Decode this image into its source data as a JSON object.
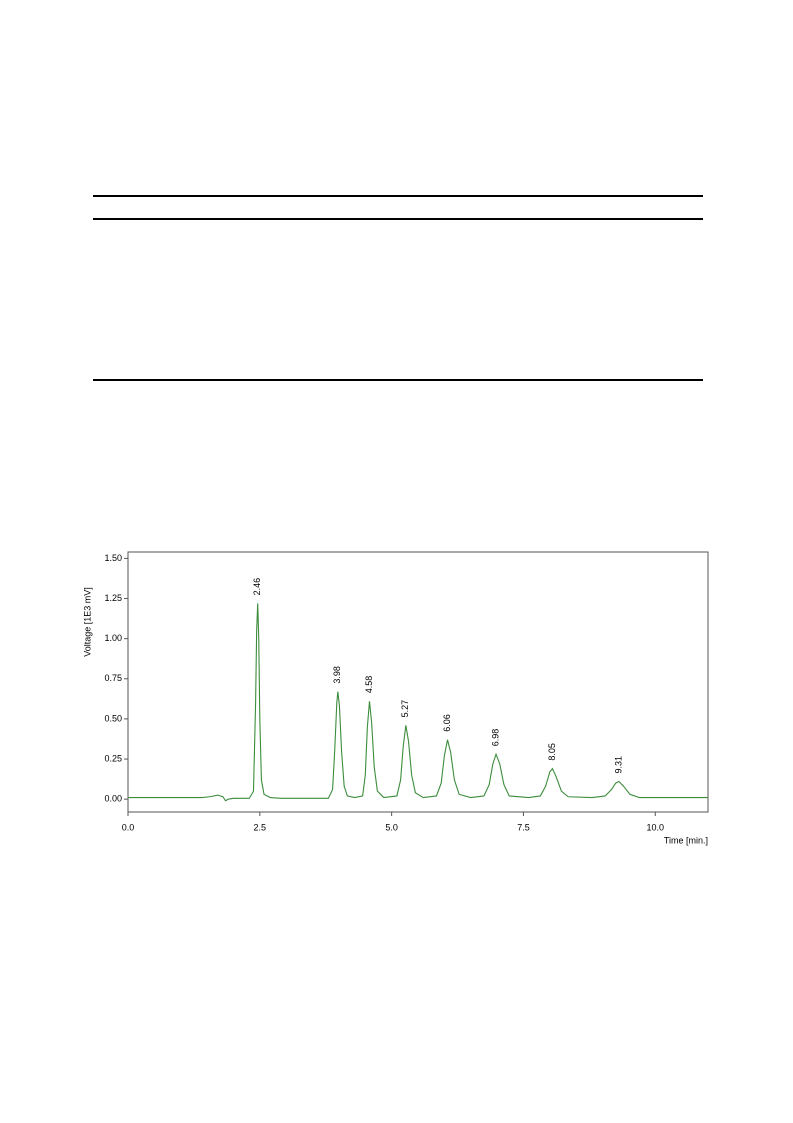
{
  "chart_data": {
    "type": "line",
    "y_label": "Voltage [1E3 mV]",
    "x_label": "Time [min.]",
    "xlim": [
      0,
      11
    ],
    "ylim": [
      -0.08,
      1.54
    ],
    "xticks": [
      {
        "value": 0,
        "label": "0.0"
      },
      {
        "value": 2.5,
        "label": "2.5"
      },
      {
        "value": 5,
        "label": "5.0"
      },
      {
        "value": 7.5,
        "label": "7.5"
      },
      {
        "value": 10,
        "label": "10.0"
      }
    ],
    "yticks": [
      {
        "value": 0,
        "label": "0.00"
      },
      {
        "value": 0.25,
        "label": "0.25"
      },
      {
        "value": 0.5,
        "label": "0.50"
      },
      {
        "value": 0.75,
        "label": "0.75"
      },
      {
        "value": 1,
        "label": "1.00"
      },
      {
        "value": 1.25,
        "label": "1.25"
      },
      {
        "value": 1.5,
        "label": "1.50"
      }
    ],
    "peak_labels": [
      2.46,
      3.98,
      4.58,
      5.27,
      6.06,
      6.98,
      8.05,
      9.31
    ],
    "peak_heights": [
      1.22,
      0.67,
      0.61,
      0.46,
      0.37,
      0.28,
      0.19,
      0.11
    ],
    "series": [
      {
        "color": "#3c8c3c",
        "x": [
          0,
          1.4,
          1.55,
          1.7,
          1.8,
          1.85,
          1.9,
          2.0,
          2.3,
          2.38,
          2.42,
          2.44,
          2.46,
          2.48,
          2.5,
          2.53,
          2.58,
          2.7,
          2.9,
          3.8,
          3.88,
          3.92,
          3.96,
          3.98,
          4.01,
          4.05,
          4.1,
          4.16,
          4.3,
          4.45,
          4.5,
          4.54,
          4.58,
          4.62,
          4.67,
          4.73,
          4.85,
          5.1,
          5.17,
          5.22,
          5.27,
          5.32,
          5.38,
          5.45,
          5.6,
          5.85,
          5.94,
          6.0,
          6.06,
          6.12,
          6.19,
          6.28,
          6.5,
          6.75,
          6.85,
          6.92,
          6.98,
          7.05,
          7.13,
          7.23,
          7.6,
          7.82,
          7.92,
          8.0,
          8.05,
          8.12,
          8.22,
          8.35,
          8.8,
          9.05,
          9.17,
          9.25,
          9.31,
          9.4,
          9.52,
          9.7,
          10.5,
          11
        ],
        "values": [
          0.01,
          0.01,
          0.015,
          0.025,
          0.015,
          -0.01,
          0.0,
          0.005,
          0.005,
          0.05,
          0.6,
          1.05,
          1.22,
          1.0,
          0.5,
          0.12,
          0.03,
          0.01,
          0.005,
          0.005,
          0.06,
          0.3,
          0.6,
          0.67,
          0.58,
          0.3,
          0.08,
          0.02,
          0.01,
          0.02,
          0.15,
          0.45,
          0.61,
          0.48,
          0.2,
          0.05,
          0.01,
          0.02,
          0.12,
          0.33,
          0.46,
          0.36,
          0.15,
          0.04,
          0.01,
          0.02,
          0.1,
          0.27,
          0.37,
          0.29,
          0.12,
          0.03,
          0.01,
          0.02,
          0.09,
          0.22,
          0.28,
          0.22,
          0.09,
          0.02,
          0.01,
          0.02,
          0.08,
          0.17,
          0.19,
          0.14,
          0.05,
          0.015,
          0.01,
          0.02,
          0.06,
          0.1,
          0.11,
          0.08,
          0.03,
          0.01,
          0.01,
          0.01
        ]
      }
    ]
  }
}
